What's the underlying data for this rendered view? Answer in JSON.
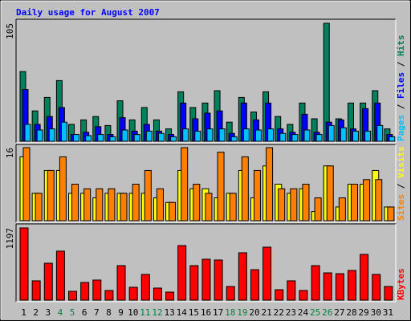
{
  "title": "Daily usage for August 2007",
  "legend_separator": " / ",
  "chart_data": [
    {
      "type": "bar",
      "ylim": [
        0,
        105
      ],
      "yticks": [
        105
      ],
      "series": [
        {
          "name": "Hits",
          "color": "#00805c",
          "values": [
            62,
            27,
            39,
            54,
            15,
            19,
            22,
            14,
            36,
            19,
            30,
            19,
            11,
            44,
            30,
            34,
            45,
            17,
            39,
            26,
            44,
            22,
            15,
            34,
            20,
            105,
            20,
            34,
            34,
            45,
            11
          ]
        },
        {
          "name": "Files",
          "color": "#0000ff",
          "values": [
            46,
            15,
            22,
            30,
            6,
            8,
            13,
            6,
            21,
            9,
            15,
            9,
            6,
            34,
            20,
            25,
            27,
            7,
            34,
            19,
            34,
            11,
            8,
            24,
            8,
            17,
            19,
            11,
            29,
            34,
            6
          ]
        },
        {
          "name": "Pages",
          "color": "#00c0ff",
          "values": [
            15,
            10,
            11,
            17,
            6,
            5,
            6,
            4,
            10,
            6,
            9,
            7,
            4,
            11,
            9,
            11,
            11,
            4,
            11,
            10,
            11,
            7,
            6,
            10,
            6,
            14,
            12,
            9,
            9,
            14,
            4
          ]
        }
      ]
    },
    {
      "type": "bar",
      "ylim": [
        0,
        16
      ],
      "yticks": [
        16
      ],
      "series": [
        {
          "name": "Visits",
          "color": "#ffff00",
          "values": [
            14,
            6,
            11,
            11,
            6,
            6,
            5,
            6,
            6,
            6,
            6,
            5,
            4,
            11,
            7,
            7,
            5,
            6,
            11,
            5,
            12,
            8,
            6,
            7,
            2,
            12,
            3,
            8,
            8,
            11,
            3
          ]
        },
        {
          "name": "Sites",
          "color": "#ff8000",
          "values": [
            16,
            6,
            11,
            14,
            8,
            7,
            7,
            7,
            6,
            8,
            11,
            7,
            4,
            16,
            8,
            6,
            15,
            6,
            14,
            11,
            16,
            7,
            7,
            8,
            5,
            12,
            5,
            8,
            9,
            9,
            3
          ]
        }
      ]
    },
    {
      "type": "bar",
      "ylim": [
        0,
        1197
      ],
      "yticks": [
        1197
      ],
      "categories": [
        "1",
        "2",
        "3",
        "4",
        "5",
        "6",
        "7",
        "8",
        "9",
        "10",
        "11",
        "12",
        "13",
        "14",
        "15",
        "16",
        "17",
        "18",
        "19",
        "20",
        "21",
        "22",
        "23",
        "24",
        "25",
        "26",
        "27",
        "28",
        "29",
        "30",
        "31"
      ],
      "category_colors": [
        "#000000",
        "#000000",
        "#000000",
        "#008040",
        "#008040",
        "#000000",
        "#000000",
        "#000000",
        "#000000",
        "#000000",
        "#008040",
        "#008040",
        "#000000",
        "#000000",
        "#000000",
        "#000000",
        "#000000",
        "#008040",
        "#008040",
        "#000000",
        "#000000",
        "#000000",
        "#000000",
        "#000000",
        "#008040",
        "#008040",
        "#000000",
        "#000000",
        "#000000",
        "#000000",
        "#000000"
      ],
      "series": [
        {
          "name": "KBytes",
          "color": "#ff0000",
          "values": [
            1197,
            320,
            612,
            812,
            146,
            293,
            333,
            160,
            572,
            213,
            426,
            200,
            133,
            904,
            572,
            678,
            665,
            226,
            785,
            505,
            878,
            173,
            320,
            160,
            572,
            452,
            439,
            492,
            758,
            426,
            226
          ]
        }
      ]
    }
  ]
}
